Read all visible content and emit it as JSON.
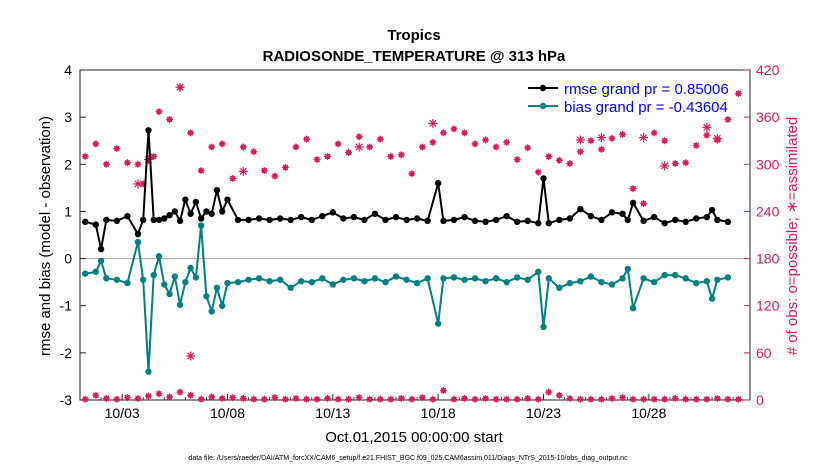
{
  "chart_data": {
    "type": "line",
    "title": "Tropics",
    "subtitle": "RADIOSONDE_TEMPERATURE @ 313 hPa",
    "xlabel": "Oct.01,2015 00:00:00 start",
    "ylabel_left": "rmse and bias (model - observation)",
    "ylabel_right": "# of obs: o=possible; ∗=assimilated",
    "footnote": "data file: /Users/raeder/DAI/ATM_forcXX/CAM6_setup/f.e21.FHIST_BGC.f09_025.CAM6assim.011/Diags_NTrS_2015-10/obs_diag_output.nc",
    "xlim": [
      1.0,
      32.8
    ],
    "ylim_left": [
      -3,
      4
    ],
    "ylim_right": [
      0,
      420
    ],
    "grid": false,
    "legend_position": "top-right",
    "xticks": [
      3,
      8,
      13,
      18,
      23,
      28
    ],
    "xtick_labels": [
      "10/03",
      "10/08",
      "10/13",
      "10/18",
      "10/23",
      "10/28"
    ],
    "yticks_left": [
      "4",
      "3",
      "2",
      "1",
      "0",
      "-1",
      "-2",
      "-3"
    ],
    "yticks_right": [
      "420",
      "360",
      "300",
      "240",
      "180",
      "120",
      "60",
      "0"
    ],
    "colors": {
      "rmse": "#000000",
      "bias": "#008080",
      "obs": "#d81b5f",
      "legend_text": "#0000ff",
      "zero_line": "#c9aaaa"
    },
    "series": [
      {
        "name": "rmse grand pr = 0.85006",
        "key": "rmse",
        "x": [
          1.25,
          1.75,
          2.0,
          2.25,
          2.75,
          3.25,
          3.75,
          4.0,
          4.25,
          4.5,
          4.75,
          5.0,
          5.25,
          5.5,
          5.75,
          6.0,
          6.25,
          6.5,
          6.75,
          7.0,
          7.25,
          7.5,
          7.75,
          8.0,
          8.5,
          9.0,
          9.5,
          10.0,
          10.5,
          11.0,
          11.5,
          12.0,
          12.5,
          13.0,
          13.5,
          14.0,
          14.5,
          15.0,
          15.5,
          16.0,
          16.5,
          17.0,
          17.5,
          18.0,
          18.25,
          18.75,
          19.25,
          19.75,
          20.25,
          20.75,
          21.25,
          21.75,
          22.25,
          22.75,
          23.0,
          23.25,
          23.75,
          24.25,
          24.75,
          25.25,
          25.75,
          26.25,
          26.75,
          27.0,
          27.25,
          27.75,
          28.25,
          28.75,
          29.25,
          29.75,
          30.25,
          30.75,
          31.0,
          31.25,
          31.75
        ],
        "values": [
          0.78,
          0.72,
          0.2,
          0.82,
          0.8,
          0.9,
          0.52,
          0.82,
          2.72,
          0.82,
          0.82,
          0.85,
          0.92,
          1.0,
          0.8,
          1.25,
          0.95,
          1.2,
          0.85,
          1.0,
          0.95,
          1.45,
          1.0,
          1.25,
          0.82,
          0.82,
          0.85,
          0.82,
          0.85,
          0.82,
          0.88,
          0.82,
          0.9,
          0.98,
          0.85,
          0.88,
          0.82,
          0.95,
          0.82,
          0.88,
          0.82,
          0.85,
          0.8,
          1.6,
          0.8,
          0.82,
          0.88,
          0.8,
          0.78,
          0.82,
          0.9,
          0.78,
          0.8,
          0.75,
          1.7,
          0.75,
          0.82,
          0.85,
          1.05,
          0.9,
          0.82,
          0.98,
          0.95,
          0.82,
          1.18,
          0.8,
          0.88,
          0.75,
          0.82,
          0.78,
          0.85,
          0.88,
          1.03,
          0.82,
          0.78
        ]
      },
      {
        "name": "bias grand pr = -0.43604",
        "key": "bias",
        "x": [
          1.25,
          1.75,
          2.0,
          2.25,
          2.75,
          3.25,
          3.75,
          4.0,
          4.25,
          4.5,
          4.75,
          5.0,
          5.25,
          5.5,
          5.75,
          6.0,
          6.25,
          6.5,
          6.75,
          7.0,
          7.25,
          7.5,
          7.75,
          8.0,
          8.5,
          9.0,
          9.5,
          10.0,
          10.5,
          11.0,
          11.5,
          12.0,
          12.5,
          13.0,
          13.5,
          14.0,
          14.5,
          15.0,
          15.5,
          16.0,
          16.5,
          17.0,
          17.5,
          18.0,
          18.25,
          18.75,
          19.25,
          19.75,
          20.25,
          20.75,
          21.25,
          21.75,
          22.25,
          22.75,
          23.0,
          23.25,
          23.75,
          24.25,
          24.75,
          25.25,
          25.75,
          26.25,
          26.75,
          27.0,
          27.25,
          27.75,
          28.25,
          28.75,
          29.25,
          29.75,
          30.25,
          30.75,
          31.0,
          31.25,
          31.75
        ],
        "values": [
          -0.32,
          -0.28,
          -0.05,
          -0.42,
          -0.45,
          -0.52,
          0.35,
          -0.45,
          -2.4,
          -0.35,
          0.05,
          -0.55,
          -0.75,
          -0.38,
          -0.98,
          -0.5,
          -0.2,
          -0.4,
          0.7,
          -0.8,
          -1.12,
          -0.62,
          -1.0,
          -0.52,
          -0.5,
          -0.45,
          -0.42,
          -0.48,
          -0.45,
          -0.62,
          -0.48,
          -0.5,
          -0.42,
          -0.55,
          -0.45,
          -0.42,
          -0.48,
          -0.42,
          -0.5,
          -0.38,
          -0.45,
          -0.52,
          -0.42,
          -1.38,
          -0.42,
          -0.4,
          -0.45,
          -0.42,
          -0.48,
          -0.42,
          -0.5,
          -0.4,
          -0.45,
          -0.28,
          -1.45,
          -0.42,
          -0.62,
          -0.52,
          -0.48,
          -0.38,
          -0.5,
          -0.55,
          -0.42,
          -0.22,
          -1.05,
          -0.42,
          -0.5,
          -0.35,
          -0.35,
          -0.42,
          -0.52,
          -0.48,
          -0.85,
          -0.45,
          -0.4
        ]
      },
      {
        "name": "obs possible",
        "key": "obs",
        "x": [
          1.25,
          1.75,
          2.25,
          2.75,
          3.25,
          3.75,
          4.0,
          4.25,
          4.5,
          4.75,
          5.25,
          5.75,
          6.25,
          6.75,
          7.25,
          7.75,
          8.25,
          8.75,
          9.25,
          9.75,
          10.25,
          10.75,
          11.25,
          11.75,
          12.25,
          12.75,
          13.25,
          13.75,
          14.25,
          14.75,
          15.25,
          15.75,
          16.25,
          16.75,
          17.25,
          17.75,
          18.25,
          18.75,
          19.25,
          19.75,
          20.25,
          20.75,
          21.25,
          21.75,
          22.25,
          22.75,
          23.25,
          23.75,
          24.25,
          24.75,
          25.25,
          25.75,
          26.25,
          26.75,
          27.25,
          27.75,
          28.25,
          28.75,
          29.25,
          29.75,
          30.25,
          30.75,
          31.25,
          31.75,
          32.25
        ],
        "values": [
          310,
          326,
          300,
          320,
          302,
          300,
          275,
          306,
          310,
          367,
          357,
          398,
          340,
          292,
          322,
          326,
          282,
          322,
          316,
          292,
          285,
          296,
          322,
          332,
          306,
          310,
          326,
          315,
          335,
          322,
          332,
          310,
          312,
          288,
          322,
          328,
          340,
          345,
          340,
          326,
          331,
          322,
          328,
          306,
          321,
          290,
          310,
          305,
          301,
          316,
          330,
          319,
          333,
          338,
          269,
          250,
          340,
          330,
          301,
          302,
          324,
          337,
          331,
          357,
          390
        ]
      },
      {
        "name": "obs assimilated",
        "key": "obs_assim",
        "x": [
          3.75,
          4.25,
          5.75,
          6.25,
          8.75,
          14.25,
          17.75,
          24.75,
          25.75,
          27.75,
          28.75,
          30.75,
          31.25
        ],
        "values": [
          275,
          306,
          398,
          56,
          291,
          322,
          352,
          331,
          334,
          334,
          298,
          347,
          333
        ]
      }
    ],
    "obs_low": {
      "x": [
        1.25,
        1.75,
        2.25,
        2.75,
        3.25,
        3.75,
        4.25,
        4.75,
        5.25,
        5.75,
        6.25,
        6.75,
        7.25,
        7.75,
        8.25,
        8.75,
        9.25,
        9.75,
        10.25,
        10.75,
        11.25,
        11.75,
        12.25,
        12.75,
        13.25,
        13.75,
        14.25,
        14.75,
        15.25,
        15.75,
        16.25,
        16.75,
        17.25,
        17.75,
        18.25,
        18.75,
        19.25,
        19.75,
        20.25,
        20.75,
        21.25,
        21.75,
        22.25,
        22.75,
        23.25,
        23.75,
        24.25,
        24.75,
        25.25,
        25.75,
        26.25,
        26.75,
        27.25,
        27.75,
        28.25,
        28.75,
        29.25,
        29.75,
        30.25,
        30.75,
        31.25,
        31.75,
        32.25
      ],
      "values": [
        1,
        6,
        2,
        1,
        3,
        2,
        5,
        8,
        4,
        10,
        6,
        1,
        4,
        2,
        3,
        2,
        1,
        1,
        3,
        1,
        2,
        1,
        1,
        2,
        1,
        1,
        3,
        1,
        1,
        1,
        2,
        1,
        3,
        1,
        12,
        1,
        2,
        1,
        2,
        1,
        1,
        1,
        2,
        1,
        10,
        6,
        2,
        1,
        1,
        1,
        2,
        3,
        1,
        1,
        1,
        1,
        2,
        1,
        1,
        1,
        2,
        1,
        1
      ]
    }
  }
}
